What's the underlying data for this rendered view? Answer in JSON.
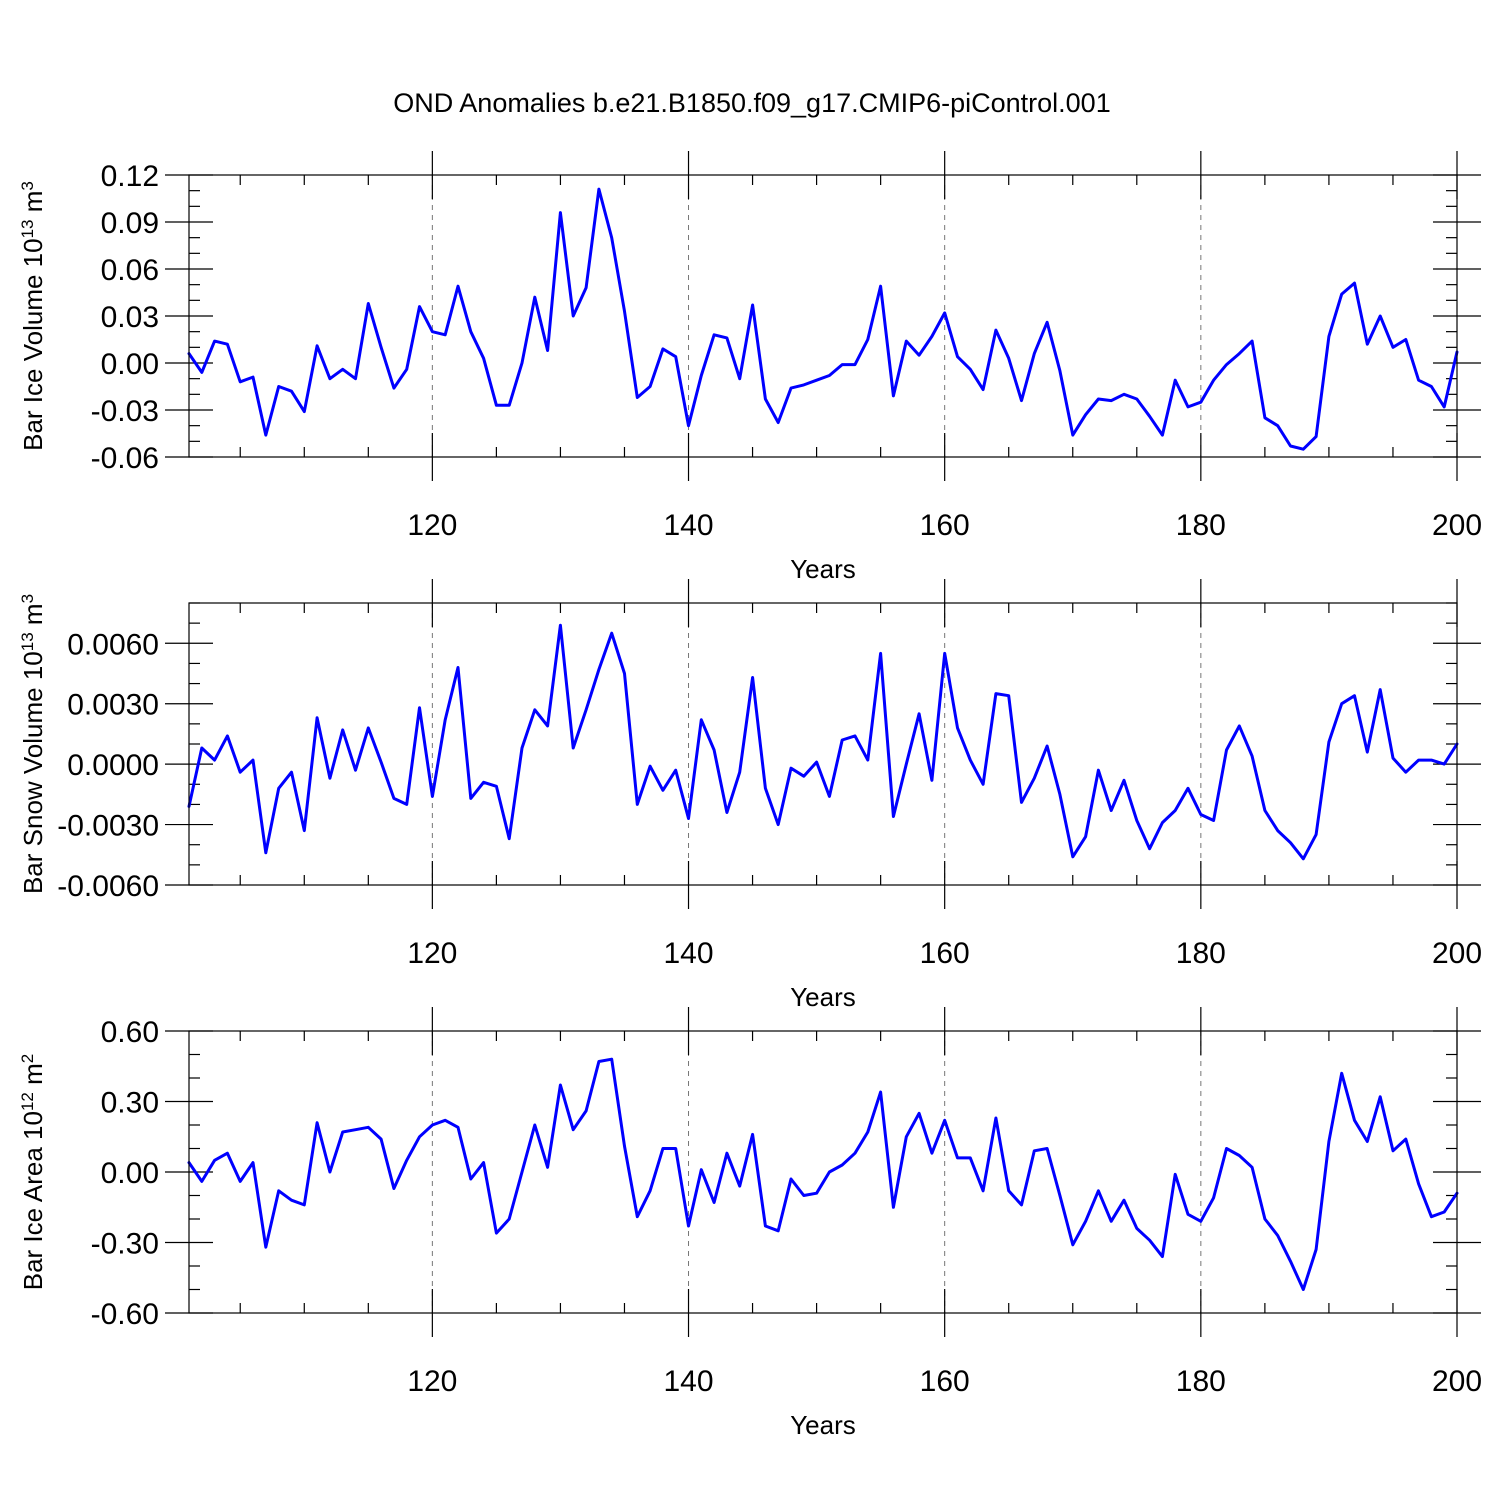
{
  "title": "OND Anomalies b.e21.B1850.f09_g17.CMIP6-piControl.001",
  "line_color": "#0000ff",
  "chart_data": [
    {
      "type": "line",
      "ylabel_main": "Bar Ice Volume 10",
      "ylabel_exp": "13",
      "ylabel_unit": "m",
      "ylabel_unit_exp": "3",
      "xlabel": "Years",
      "xlim": [
        101,
        200
      ],
      "ylim": [
        -0.06,
        0.12
      ],
      "yticks": [
        "0.12",
        "0.09",
        "0.06",
        "0.03",
        "0.00",
        "-0.03",
        "-0.06"
      ],
      "xticks": [
        "120",
        "140",
        "160",
        "180",
        "200"
      ],
      "x_start": 101,
      "values": [
        0.006,
        -0.006,
        0.014,
        0.012,
        -0.012,
        -0.009,
        -0.046,
        -0.015,
        -0.018,
        -0.031,
        0.011,
        -0.01,
        -0.004,
        -0.01,
        0.038,
        0.01,
        -0.016,
        -0.004,
        0.036,
        0.02,
        0.018,
        0.049,
        0.02,
        0.003,
        -0.027,
        -0.027,
        0.0,
        0.042,
        0.008,
        0.096,
        0.03,
        0.048,
        0.111,
        0.08,
        0.033,
        -0.022,
        -0.015,
        0.009,
        0.004,
        -0.04,
        -0.008,
        0.018,
        0.016,
        -0.01,
        0.037,
        -0.023,
        -0.038,
        -0.016,
        -0.014,
        -0.011,
        -0.008,
        -0.001,
        -0.001,
        0.015,
        0.049,
        -0.021,
        0.014,
        0.005,
        0.017,
        0.032,
        0.004,
        -0.004,
        -0.017,
        0.021,
        0.003,
        -0.024,
        0.006,
        0.026,
        -0.005,
        -0.046,
        -0.033,
        -0.023,
        -0.024,
        -0.02,
        -0.023,
        -0.034,
        -0.046,
        -0.011,
        -0.028,
        -0.025,
        -0.011,
        -0.001,
        0.006,
        0.014,
        -0.035,
        -0.04,
        -0.053,
        -0.055,
        -0.047,
        0.017,
        0.044,
        0.051,
        0.012,
        0.03,
        0.01,
        0.015,
        -0.011,
        -0.015,
        -0.028,
        0.007
      ]
    },
    {
      "type": "line",
      "ylabel_main": "Bar Snow Volume 10",
      "ylabel_exp": "13",
      "ylabel_unit": "m",
      "ylabel_unit_exp": "3",
      "xlabel": "Years",
      "xlim": [
        101,
        200
      ],
      "ylim": [
        -0.006,
        0.008
      ],
      "yticks": [
        "0.0060",
        "0.0030",
        "0.0000",
        "-0.0030",
        "-0.0060"
      ],
      "xticks": [
        "120",
        "140",
        "160",
        "180",
        "200"
      ],
      "x_start": 101,
      "values": [
        -0.0021,
        0.0008,
        0.0002,
        0.0014,
        -0.0004,
        0.0002,
        -0.0044,
        -0.0012,
        -0.0004,
        -0.0033,
        0.0023,
        -0.0007,
        0.0017,
        -0.0003,
        0.0018,
        0.0001,
        -0.0017,
        -0.002,
        0.0028,
        -0.0016,
        0.0022,
        0.0048,
        -0.0017,
        -0.0009,
        -0.0011,
        -0.0037,
        0.0008,
        0.0027,
        0.0019,
        0.0069,
        0.0008,
        0.0027,
        0.0047,
        0.0065,
        0.0045,
        -0.002,
        -0.0001,
        -0.0013,
        -0.0003,
        -0.0027,
        0.0022,
        0.0007,
        -0.0024,
        -0.0004,
        0.0043,
        -0.0012,
        -0.003,
        -0.0002,
        -0.0006,
        0.0001,
        -0.0016,
        0.0012,
        0.0014,
        0.0002,
        0.0055,
        -0.0026,
        0.0,
        0.0025,
        -0.0008,
        0.0055,
        0.0018,
        0.0002,
        -0.001,
        0.0035,
        0.0034,
        -0.0019,
        -0.0007,
        0.0009,
        -0.0015,
        -0.0046,
        -0.0036,
        -0.0003,
        -0.0023,
        -0.0008,
        -0.0028,
        -0.0042,
        -0.0029,
        -0.0023,
        -0.0012,
        -0.0025,
        -0.0028,
        0.0007,
        0.0019,
        0.0004,
        -0.0023,
        -0.0033,
        -0.0039,
        -0.0047,
        -0.0035,
        0.0011,
        0.003,
        0.0034,
        0.0006,
        0.0037,
        0.0003,
        -0.0004,
        0.0002,
        0.0002,
        0.0,
        0.001
      ]
    },
    {
      "type": "line",
      "ylabel_main": "Bar Ice Area 10",
      "ylabel_exp": "12",
      "ylabel_unit": "m",
      "ylabel_unit_exp": "2",
      "xlabel": "Years",
      "xlim": [
        101,
        200
      ],
      "ylim": [
        -0.6,
        0.6
      ],
      "yticks": [
        "0.60",
        "0.30",
        "0.00",
        "-0.30",
        "-0.60"
      ],
      "xticks": [
        "120",
        "140",
        "160",
        "180",
        "200"
      ],
      "x_start": 101,
      "values": [
        0.04,
        -0.04,
        0.05,
        0.08,
        -0.04,
        0.04,
        -0.32,
        -0.08,
        -0.12,
        -0.14,
        0.21,
        0.0,
        0.17,
        0.18,
        0.19,
        0.14,
        -0.07,
        0.05,
        0.15,
        0.2,
        0.22,
        0.19,
        -0.03,
        0.04,
        -0.26,
        -0.2,
        0.0,
        0.2,
        0.02,
        0.37,
        0.18,
        0.26,
        0.47,
        0.48,
        0.11,
        -0.19,
        -0.08,
        0.1,
        0.1,
        -0.23,
        0.01,
        -0.13,
        0.08,
        -0.06,
        0.16,
        -0.23,
        -0.25,
        -0.03,
        -0.1,
        -0.09,
        0.0,
        0.03,
        0.08,
        0.17,
        0.34,
        -0.15,
        0.15,
        0.25,
        0.08,
        0.22,
        0.06,
        0.06,
        -0.08,
        0.23,
        -0.08,
        -0.14,
        0.09,
        0.1,
        -0.1,
        -0.31,
        -0.21,
        -0.08,
        -0.21,
        -0.12,
        -0.24,
        -0.29,
        -0.36,
        -0.01,
        -0.18,
        -0.21,
        -0.11,
        0.1,
        0.07,
        0.02,
        -0.2,
        -0.27,
        -0.38,
        -0.5,
        -0.33,
        0.13,
        0.42,
        0.22,
        0.13,
        0.32,
        0.09,
        0.14,
        -0.05,
        -0.19,
        -0.17,
        -0.09
      ]
    }
  ]
}
